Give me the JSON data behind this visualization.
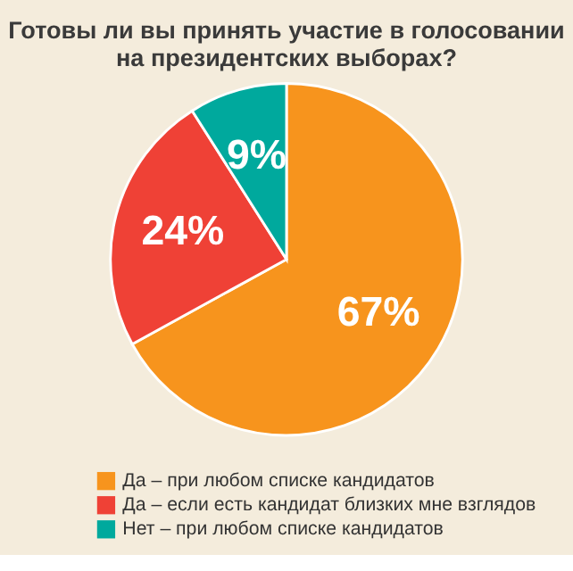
{
  "chart_data": {
    "type": "pie",
    "title": [
      "Готовы ли вы принять участие в голосовании",
      "на президентских выборах?"
    ],
    "categories": [
      "Да – при любом списке кандидатов",
      "Да – если есть кандидат близких мне взглядов",
      "Нет – при любом списке кандидатов"
    ],
    "values": [
      67,
      24,
      9
    ],
    "colors": [
      "#f7941d",
      "#ef4136",
      "#00a99d"
    ],
    "value_labels": [
      "67%",
      "24%",
      "9%"
    ],
    "legend": "bottom"
  }
}
